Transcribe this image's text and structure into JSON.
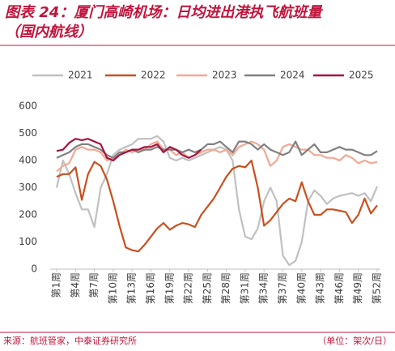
{
  "chart_data": {
    "type": "line",
    "title": "图表 24：厦门高崎机场：日均进出港执飞航班量（国内航线）",
    "source": "来源：航班管家，中泰证券研究所",
    "unit": "（单位：架次/日）",
    "categories": [
      "第1周",
      null,
      null,
      "第4周",
      null,
      null,
      "第7周",
      null,
      null,
      "第10周",
      null,
      null,
      "第13周",
      null,
      null,
      "第16周",
      null,
      null,
      "第19周",
      null,
      null,
      "第22周",
      null,
      null,
      "第25周",
      null,
      null,
      "第28周",
      null,
      null,
      "第31周",
      null,
      null,
      "第34周",
      null,
      null,
      "第37周",
      null,
      null,
      "第40周",
      null,
      null,
      "第43周",
      null,
      null,
      "第46周",
      null,
      null,
      "第49周",
      null,
      null,
      "第52周"
    ],
    "ylim": [
      0,
      600
    ],
    "yticks": [
      0,
      100,
      200,
      300,
      400,
      500,
      600
    ],
    "legend": "top",
    "series": [
      {
        "name": "2021",
        "color": "#c0c0c0",
        "values": [
          300,
          400,
          350,
          280,
          220,
          220,
          155,
          300,
          350,
          420,
          440,
          450,
          460,
          480,
          480,
          480,
          490,
          470,
          410,
          400,
          410,
          400,
          410,
          420,
          430,
          440,
          450,
          440,
          400,
          220,
          120,
          110,
          150,
          250,
          300,
          250,
          50,
          15,
          30,
          100,
          250,
          290,
          270,
          240,
          260,
          270,
          275,
          280,
          270,
          280,
          250,
          305
        ]
      },
      {
        "name": "2022",
        "color": "#c8501e",
        "values": [
          340,
          350,
          350,
          375,
          255,
          350,
          395,
          380,
          330,
          250,
          160,
          80,
          70,
          65,
          90,
          120,
          150,
          170,
          145,
          160,
          170,
          165,
          155,
          200,
          230,
          260,
          300,
          340,
          370,
          380,
          375,
          400,
          300,
          160,
          180,
          210,
          240,
          260,
          250,
          320,
          250,
          200,
          200,
          220,
          220,
          215,
          210,
          170,
          200,
          260,
          205,
          235
        ]
      },
      {
        "name": "2023",
        "color": "#f4a794",
        "values": [
          360,
          380,
          390,
          440,
          450,
          440,
          440,
          430,
          400,
          410,
          420,
          440,
          430,
          440,
          440,
          460,
          470,
          440,
          440,
          420,
          430,
          410,
          420,
          430,
          440,
          440,
          430,
          440,
          420,
          450,
          460,
          470,
          460,
          440,
          380,
          400,
          450,
          460,
          450,
          440,
          440,
          420,
          420,
          410,
          410,
          400,
          420,
          410,
          390,
          400,
          390,
          395
        ]
      },
      {
        "name": "2024",
        "color": "#808080",
        "values": [
          410,
          420,
          430,
          450,
          460,
          460,
          450,
          440,
          420,
          410,
          430,
          430,
          440,
          430,
          440,
          440,
          450,
          440,
          440,
          440,
          430,
          440,
          430,
          440,
          460,
          460,
          470,
          450,
          430,
          470,
          470,
          460,
          440,
          460,
          440,
          430,
          420,
          430,
          470,
          420,
          440,
          460,
          430,
          430,
          440,
          450,
          440,
          440,
          430,
          420,
          420,
          435
        ]
      },
      {
        "name": "2025",
        "color": "#a8123e",
        "values": [
          435,
          440,
          465,
          480,
          475,
          480,
          470,
          460,
          410,
          400,
          420,
          430,
          440,
          440,
          450,
          450,
          460,
          430,
          450,
          440,
          420,
          410,
          420,
          440,
          null,
          null,
          null,
          null,
          null,
          null,
          null,
          null,
          null,
          null,
          null,
          null,
          null,
          null,
          null,
          null,
          null,
          null,
          null,
          null,
          null,
          null,
          null,
          null,
          null,
          null,
          null,
          null
        ]
      }
    ]
  }
}
